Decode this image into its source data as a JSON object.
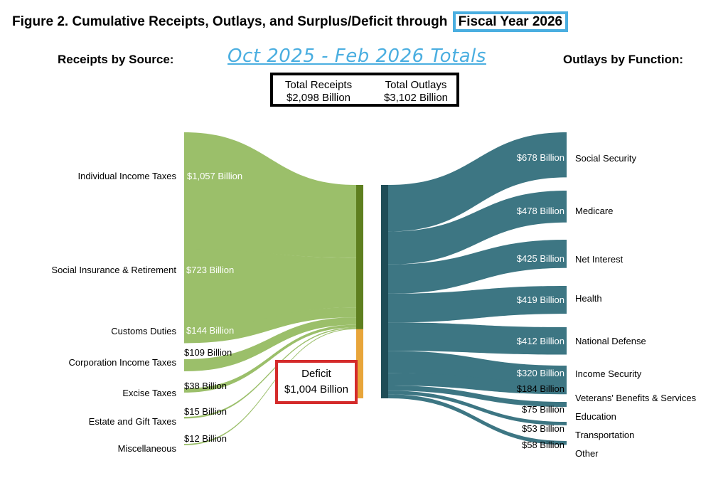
{
  "figure": {
    "title_prefix": "Figure 2. Cumulative Receipts, Outlays, and Surplus/Deficit through",
    "title_highlight": "Fiscal Year 2026",
    "subtitle": "Oct 2025 - Feb 2026 Totals",
    "receipts_heading": "Receipts by Source:",
    "outlays_heading": "Outlays by Function:",
    "totals": {
      "receipts_label": "Total Receipts",
      "receipts_value": "$2,098 Billion",
      "outlays_label": "Total Outlays",
      "outlays_value": "$3,102 Billion"
    },
    "deficit": {
      "label": "Deficit",
      "value": "$1,004 Billion"
    }
  },
  "chart_data": {
    "type": "sankey",
    "units": "Billion",
    "colors": {
      "receipts": "#9bbf6a",
      "receipts_bar": "#5e7f1f",
      "deficit_bar": "#e8a53a",
      "outlays": "#3d7683",
      "outlays_bar": "#1f4d57",
      "subtitle": "#4aaee0",
      "deficit_border": "#d42b2b"
    },
    "receipts": [
      {
        "name": "Individual Income Taxes",
        "value": 1057,
        "label": "$1,057 Billion"
      },
      {
        "name": "Social Insurance & Retirement",
        "value": 723,
        "label": "$723 Billion"
      },
      {
        "name": "Customs Duties",
        "value": 144,
        "label": "$144 Billion"
      },
      {
        "name": "Corporation Income Taxes",
        "value": 109,
        "label": "$109 Billion"
      },
      {
        "name": "Excise Taxes",
        "value": 38,
        "label": "$38 Billion"
      },
      {
        "name": "Estate and Gift Taxes",
        "value": 15,
        "label": "$15 Billion"
      },
      {
        "name": "Miscellaneous",
        "value": 12,
        "label": "$12 Billion"
      }
    ],
    "outlays": [
      {
        "name": "Social Security",
        "value": 678,
        "label": "$678 Billion"
      },
      {
        "name": "Medicare",
        "value": 478,
        "label": "$478 Billion"
      },
      {
        "name": "Net Interest",
        "value": 425,
        "label": "$425 Billion"
      },
      {
        "name": "Health",
        "value": 419,
        "label": "$419 Billion"
      },
      {
        "name": "National Defense",
        "value": 412,
        "label": "$412 Billion"
      },
      {
        "name": "Income Security",
        "value": 320,
        "label": "$320 Billion"
      },
      {
        "name": "Veterans' Benefits & Services",
        "value": 184,
        "label": "$184 Billion"
      },
      {
        "name": "Education",
        "value": 75,
        "label": "$75 Billion"
      },
      {
        "name": "Transportation",
        "value": 53,
        "label": "$53 Billion"
      },
      {
        "name": "Other",
        "value": 58,
        "label": "$58 Billion"
      }
    ]
  }
}
